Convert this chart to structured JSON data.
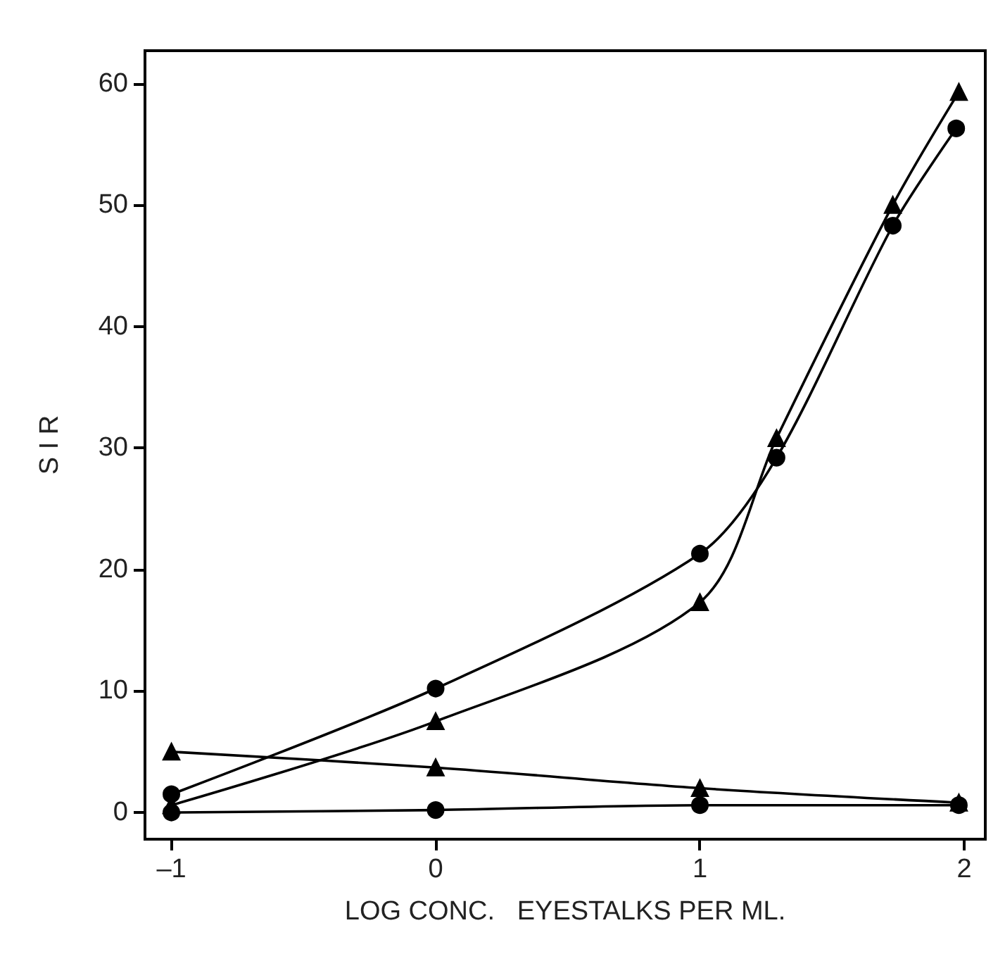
{
  "chart_data": {
    "type": "line",
    "xlabel": "LOG CONC.   EYESTALKS PER ML.",
    "ylabel": "S I R",
    "xlim": [
      -1.1,
      2.08
    ],
    "ylim": [
      -2.2,
      62.7
    ],
    "xticks": [
      {
        "value": -1,
        "label": "–1"
      },
      0,
      1,
      2
    ],
    "yticks": [
      0,
      10,
      20,
      30,
      40,
      50,
      60
    ],
    "line_style": "solid",
    "series": [
      {
        "color": "#000000",
        "marker": "circle",
        "x": [
          -1,
          0,
          1,
          1.29,
          1.73,
          1.97
        ],
        "values": [
          1.5,
          10.2,
          21.3,
          29.2,
          48.3,
          56.3
        ]
      },
      {
        "color": "#000000",
        "marker": "triangle",
        "x": [
          -1,
          0,
          1,
          1.29,
          1.73,
          1.98
        ],
        "values": [
          0.6,
          7.5,
          17.3,
          30.8,
          50,
          59.3
        ]
      },
      {
        "color": "#000000",
        "marker": "triangle",
        "x": [
          -1,
          0,
          1,
          1.98
        ],
        "values": [
          5,
          3.7,
          2,
          0.8
        ]
      },
      {
        "color": "#000000",
        "marker": "circle",
        "x": [
          -1,
          0,
          1,
          1.98
        ],
        "values": [
          0,
          0.2,
          0.6,
          0.6
        ]
      }
    ]
  }
}
